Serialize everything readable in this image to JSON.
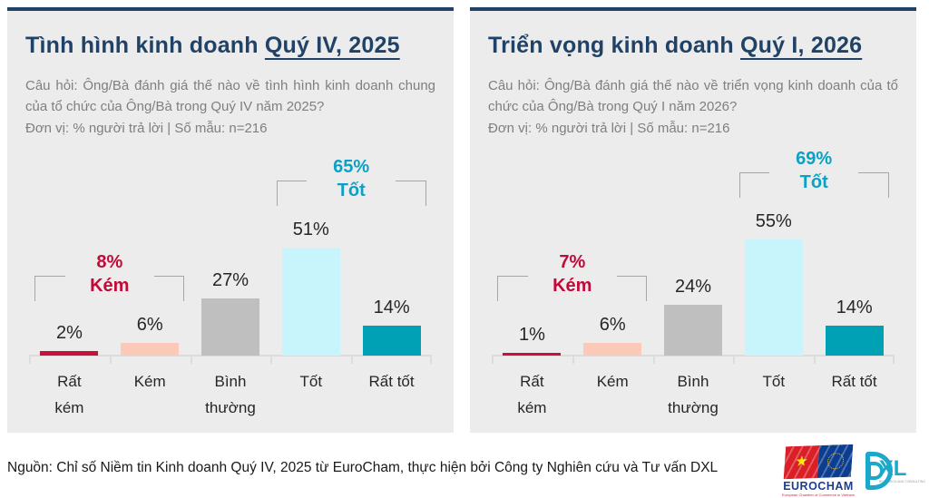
{
  "panels": [
    {
      "title_prefix": "Tình hình kinh doanh ",
      "title_period": "Quý IV, 2025",
      "question": "Câu hỏi: Ông/Bà đánh giá thế nào về tình hình kinh doanh chung của tổ chức của Ông/Bà trong Quý IV năm 2025?",
      "unit": "Đơn vị: % người trả lời | Số mẫu: n=216"
    },
    {
      "title_prefix": "Triển vọng kinh doanh ",
      "title_period": "Quý I, 2026",
      "question": "Câu hỏi: Ông/Bà đánh giá thế nào về triển vọng kinh doanh của tổ chức của Ông/Bà trong Quý I năm 2026?",
      "unit": "Đơn vị: % người trả lời | Số mẫu: n=216"
    }
  ],
  "chart_data": [
    {
      "type": "bar",
      "title": "Tình hình kinh doanh Quý IV, 2025",
      "categories": [
        "Rất\nkém",
        "Kém",
        "Bình\nthường",
        "Tốt",
        "Rất tốt"
      ],
      "values": [
        2,
        6,
        27,
        51,
        14
      ],
      "value_labels": [
        "2%",
        "6%",
        "27%",
        "51%",
        "14%"
      ],
      "bar_colors": [
        "#C8103E",
        "#FBC9B8",
        "#BFBFBF",
        "#C8F4FC",
        "#00A1B5"
      ],
      "xlabel": "",
      "ylabel": "% người trả lời",
      "ylim": [
        0,
        60
      ],
      "grid": false,
      "annotations": [
        {
          "value": "8%",
          "label": "Kém",
          "span": [
            0,
            1
          ],
          "color": "#C00A38"
        },
        {
          "value": "65%",
          "label": "Tốt",
          "span": [
            3,
            4
          ],
          "color": "#0BA1C4"
        }
      ]
    },
    {
      "type": "bar",
      "title": "Triển vọng kinh doanh Quý I, 2026",
      "categories": [
        "Rất\nkém",
        "Kém",
        "Bình\nthường",
        "Tốt",
        "Rất tốt"
      ],
      "values": [
        1,
        6,
        24,
        55,
        14
      ],
      "value_labels": [
        "1%",
        "6%",
        "24%",
        "55%",
        "14%"
      ],
      "bar_colors": [
        "#C8103E",
        "#FBC9B8",
        "#BFBFBF",
        "#C8F4FC",
        "#00A1B5"
      ],
      "xlabel": "",
      "ylabel": "% người trả lời",
      "ylim": [
        0,
        60
      ],
      "grid": false,
      "annotations": [
        {
          "value": "7%",
          "label": "Kém",
          "span": [
            0,
            1
          ],
          "color": "#C00A38"
        },
        {
          "value": "69%",
          "label": "Tốt",
          "span": [
            3,
            4
          ],
          "color": "#0BA1C4"
        }
      ]
    }
  ],
  "footer": {
    "source_note": "Nguồn: Chỉ số Niềm tin Kinh doanh Quý IV, 2025 từ EuroCham, thực hiện bởi Công ty Nghiên cứu và Tư vấn DXL"
  },
  "logos": {
    "eurocham": {
      "name": "EUROCHAM",
      "caption": "European Chamber of Commerce in Vietnam",
      "star": "★"
    },
    "dxl": {
      "text": "XL",
      "caption": "RESEARCH AND CONSULTING"
    }
  },
  "colors": {
    "panel_bg": "#ECECEC",
    "navy": "#1F4266",
    "question_gray": "#7F7F7F",
    "bad_text": "#C00A38",
    "good_text": "#0BA1C4",
    "bracket_gray": "#A6A6A6",
    "baseline_gray": "#DCDCDC"
  }
}
